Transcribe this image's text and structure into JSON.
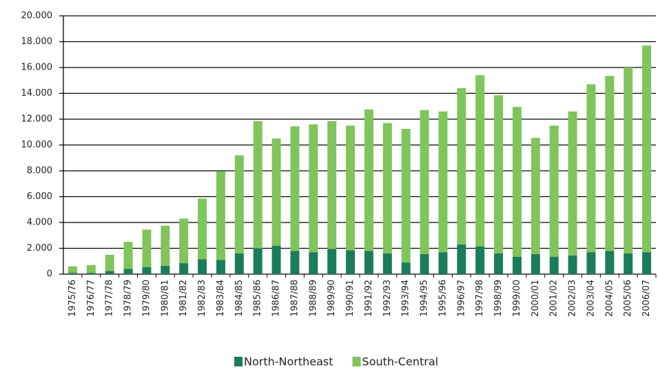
{
  "chart_data": {
    "type": "bar",
    "stacked": true,
    "categories": [
      "1975/76",
      "1976/77",
      "1977/78",
      "1978/79",
      "1979/80",
      "1980/81",
      "1981/82",
      "1982/83",
      "1983/84",
      "1984/85",
      "1985/86",
      "1986/87",
      "1987/88",
      "1988/89",
      "1989/90",
      "1990/91",
      "1991/92",
      "1992/93",
      "1993/94",
      "1994/95",
      "1995/96",
      "1996/97",
      "1997/98",
      "1998/99",
      "1999/00",
      "2000/01",
      "2001/02",
      "2002/03",
      "2003/04",
      "2004/05",
      "2005/06",
      "2006/07"
    ],
    "series": [
      {
        "name": "North-Northeast",
        "color": "#1b7c5a",
        "values": [
          100,
          100,
          250,
          400,
          550,
          650,
          850,
          1150,
          1100,
          1600,
          2000,
          2200,
          1800,
          1700,
          1950,
          1850,
          1800,
          1600,
          900,
          1550,
          1700,
          2300,
          2150,
          1600,
          1350,
          1550,
          1350,
          1450,
          1700,
          1800,
          1600,
          1700
        ]
      },
      {
        "name": "South-Central",
        "color": "#80c45c",
        "values": [
          500,
          600,
          1250,
          2100,
          2900,
          3100,
          3450,
          4700,
          6850,
          7600,
          9850,
          8300,
          9650,
          9900,
          9900,
          9650,
          10950,
          10100,
          10350,
          11150,
          10900,
          12100,
          13250,
          12250,
          11600,
          9000,
          10150,
          11150,
          13000,
          13550,
          14400,
          16000
        ]
      }
    ],
    "ylim": [
      0,
      20000
    ],
    "yticks": [
      0,
      {
        "value": 2000,
        "label": "2.000"
      },
      {
        "value": 4000,
        "label": "4.000"
      },
      {
        "value": 6000,
        "label": "6.000"
      },
      {
        "value": 8000,
        "label": "8.000"
      },
      {
        "value": 10000,
        "label": "10.000"
      },
      {
        "value": 12000,
        "label": "12.000"
      },
      {
        "value": 14000,
        "label": "14.000"
      },
      {
        "value": 16000,
        "label": "16.000"
      },
      {
        "value": 18000,
        "label": "18.000"
      },
      {
        "value": 20000,
        "label": "20.000"
      }
    ],
    "grid": true,
    "legend": "bottom"
  }
}
